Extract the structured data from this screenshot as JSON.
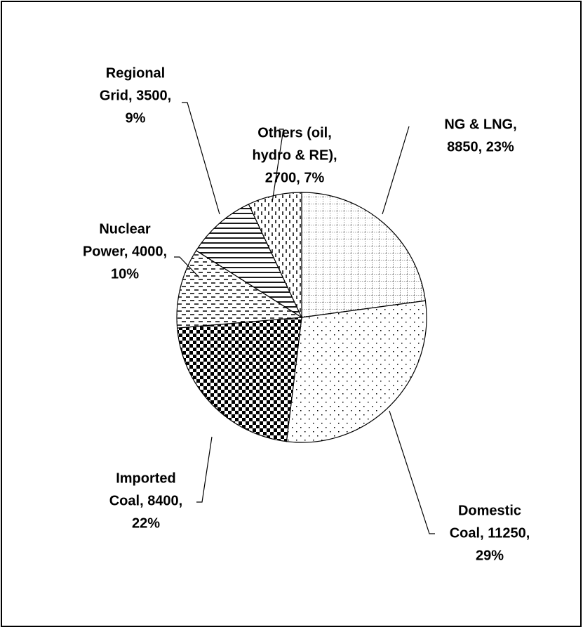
{
  "chart_data": {
    "type": "pie",
    "labels": [
      [
        "NG & LNG,",
        "8850, 23%"
      ],
      [
        "Domestic",
        "Coal, 11250,",
        "29%"
      ],
      [
        "Imported",
        "Coal, 8400,",
        "22%"
      ],
      [
        "Nuclear",
        "Power, 4000,",
        "10%"
      ],
      [
        "Regional",
        "Grid, 3500,",
        "9%"
      ],
      [
        "Others (oil,",
        "hydro & RE),",
        "2700, 7%"
      ]
    ],
    "values": [
      8850,
      11250,
      8400,
      4000,
      3500,
      2700
    ],
    "patterns": [
      "grid",
      "dots",
      "checker",
      "dashes",
      "hlines",
      "vdashes"
    ]
  }
}
